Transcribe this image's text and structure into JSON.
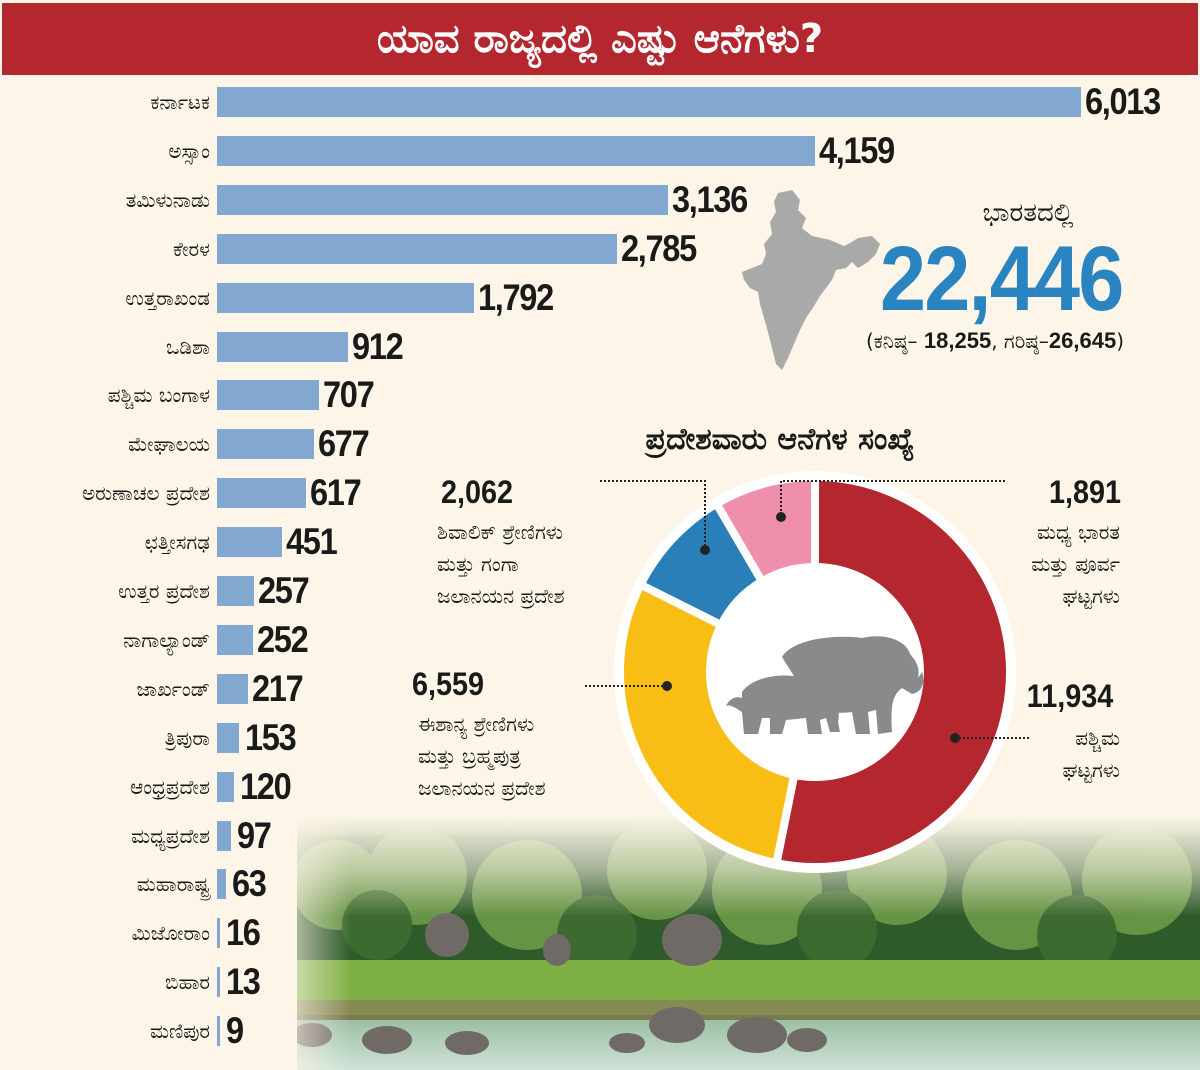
{
  "title": "ಯಾವ ರಾಜ್ಯದಲ್ಲಿ ಎಷ್ಟು ಆನೆಗಳು?",
  "chart_data": [
    {
      "type": "bar",
      "orientation": "horizontal",
      "title": "ಯಾವ ರಾಜ್ಯದಲ್ಲಿ ಎಷ್ಟು ಆನೆಗಳು?",
      "xlabel": "",
      "ylabel": "",
      "bar_color": "#82a7d0",
      "categories": [
        "ಕರ್ನಾಟಕ",
        "ಅಸ್ಸಾಂ",
        "ತಮಿಳುನಾಡು",
        "ಕೇರಳ",
        "ಉತ್ತರಾಖಂಡ",
        "ಒಡಿಶಾ",
        "ಪಶ್ಚಿಮ ಬಂಗಾಳ",
        "ಮೇಘಾಲಯ",
        "ಅರುಣಾಚಲ ಪ್ರದೇಶ",
        "ಛತ್ತೀಸಗಢ",
        "ಉತ್ತರ ಪ್ರದೇಶ",
        "ನಾಗಾಲ್ಯಾಂಡ್",
        "ಜಾರ್ಖಂಡ್",
        "ತ್ರಿಪುರಾ",
        "ಆಂಧ್ರಪ್ರದೇಶ",
        "ಮಧ್ಯಪ್ರದೇಶ",
        "ಮಹಾರಾಷ್ಟ್ರ",
        "ಮಿಜೋರಾಂ",
        "ಬಿಹಾರ",
        "ಮಣಿಪುರ"
      ],
      "values": [
        6013,
        4159,
        3136,
        2785,
        1792,
        912,
        707,
        677,
        617,
        451,
        257,
        252,
        217,
        153,
        120,
        97,
        63,
        16,
        13,
        9
      ],
      "value_labels": [
        "6,013",
        "4,159",
        "3,136",
        "2,785",
        "1,792",
        "912",
        "707",
        "677",
        "617",
        "451",
        "257",
        "252",
        "217",
        "153",
        "120",
        "97",
        "63",
        "16",
        "13",
        "9"
      ],
      "grid": false
    },
    {
      "type": "pie",
      "variant": "donut",
      "title": "ಪ್ರದೇಶವಾರು ಆನೆಗಳ ಸಂಖ್ಯೆ",
      "slices": [
        {
          "label": "ಪಶ್ಚಿಮ ಘಟ್ಟಗಳು",
          "value": 11934,
          "value_label": "11,934",
          "color": "#b5272f"
        },
        {
          "label": "ಈಶಾನ್ಯ ಶ್ರೇಣಿಗಳು ಮತ್ತು ಬ್ರಹ್ಮಪುತ್ರ ಜಲಾನಯನ ಪ್ರದೇಶ",
          "value": 6559,
          "value_label": "6,559",
          "color": "#f9be15"
        },
        {
          "label": "ಶಿವಾಲಿಕ್ ಶ್ರೇಣಿಗಳು ಮತ್ತು ಗಂಗಾ ಜಲಾನಯನ ಪ್ರದೇಶ",
          "value": 2062,
          "value_label": "2,062",
          "color": "#2a7fb8"
        },
        {
          "label": "ಮಧ್ಯ ಭಾರತ ಮತ್ತು ಪೂರ್ವ ಘಟ್ಟಗಳು",
          "value": 1891,
          "value_label": "1,891",
          "color": "#f08fab"
        }
      ]
    }
  ],
  "summary": {
    "label": "ಭಾರತದಲ್ಲಿ",
    "total": "22,446",
    "range_prefix_min": "(ಕನಿಷ್ಠ– ",
    "min": "18,255",
    "range_sep": ", ಗರಿಷ್ಠ–",
    "max": "26,645",
    "range_suffix": ")",
    "total_color": "#2a84c1"
  },
  "donut_labels": {
    "shivalik_lines": [
      "ಶಿವಾಲಿಕ್ ಶ್ರೇಣಿಗಳು",
      "ಮತ್ತು ಗಂಗಾ",
      "ಜಲಾನಯನ ಪ್ರದೇಶ"
    ],
    "central_lines": [
      "ಮಧ್ಯ ಭಾರತ",
      "ಮತ್ತು ಪೂರ್ವ",
      "ಘಟ್ಟಗಳು"
    ],
    "northeast_lines": [
      "ಈಶಾನ್ಯ ಶ್ರೇಣಿಗಳು",
      "ಮತ್ತು ಬ್ರಹ್ಮಪುತ್ರ",
      "ಜಲಾನಯನ ಪ್ರದೇಶ"
    ],
    "western_lines": [
      "ಪಶ್ಚಿಮ",
      "ಘಟ್ಟಗಳು"
    ]
  },
  "icons": {
    "map": "india-map-icon",
    "center": "elephant-icon",
    "photo": "elephant-herd-photo"
  }
}
